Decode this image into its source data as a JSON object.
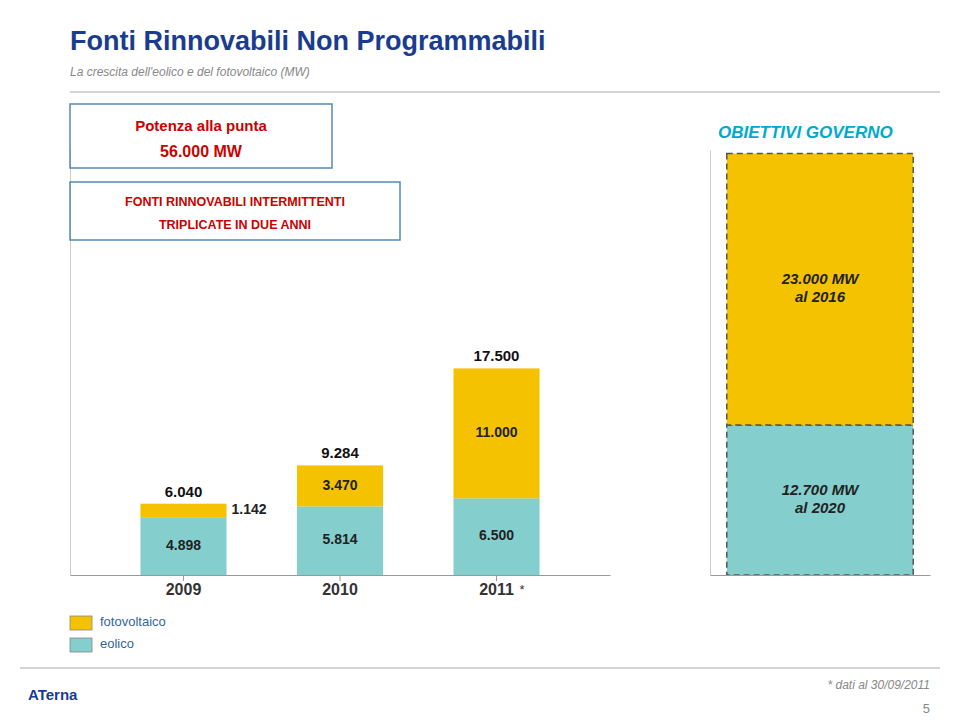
{
  "chart_data": [
    {
      "type": "bar",
      "stacked": true,
      "title": "Fonti Rinnovabili Non Programmabili",
      "subtitle": "La crescita dell'eolico e del fotovoltaico (MW)",
      "categories": [
        "2009",
        "2010",
        "2011"
      ],
      "category_notes": [
        null,
        null,
        "*"
      ],
      "series": [
        {
          "name": "eolico",
          "color": "#85CECE",
          "values": [
            4898,
            5814,
            6500
          ],
          "value_labels": [
            "4.898",
            "5.814",
            "6.500"
          ]
        },
        {
          "name": "fotovoltaico",
          "color": "#F5C200",
          "values": [
            1142,
            3470,
            11000
          ],
          "value_labels": [
            "1.142",
            "3.470",
            "11.000"
          ]
        }
      ],
      "totals": {
        "values": [
          6040,
          9284,
          17500
        ],
        "value_labels": [
          "6.040",
          "9.284",
          "17.500"
        ]
      },
      "ylim": [
        0,
        36000
      ],
      "data_labels": true,
      "tick_labels": "x",
      "legend": "bottom",
      "annotations": [
        "Potenza alla punta",
        "56.000 MW",
        "FONTI RINNOVABILI INTERMITTENTI",
        "TRIPLICATE IN DUE ANNI"
      ],
      "footnote": "* dati al 30/09/2011",
      "page_number": "5",
      "logo": "ATerna"
    },
    {
      "type": "bar",
      "stacked": true,
      "title": "OBIETTIVI GOVERNO",
      "categories": [
        null
      ],
      "series": [
        {
          "name": "eolico",
          "color": "#85CECE",
          "values": [
            12700
          ],
          "value_labels": [
            "12.700 MW\nal 2020"
          ]
        },
        {
          "name": "fotovoltaico",
          "color": "#F5C200",
          "values": [
            23000
          ],
          "value_labels": [
            "23.000 MW\nal 2016"
          ]
        }
      ],
      "ylim": [
        0,
        36000
      ],
      "data_labels": true,
      "tick_labels": false,
      "line_style": "dashed"
    }
  ]
}
